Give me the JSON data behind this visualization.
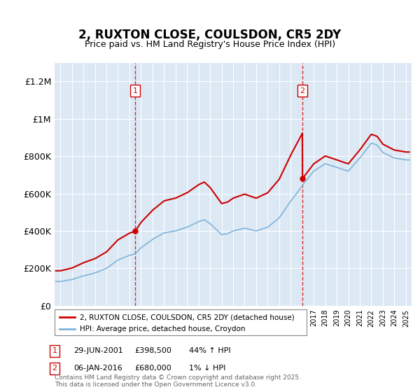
{
  "title": "2, RUXTON CLOSE, COULSDON, CR5 2DY",
  "subtitle": "Price paid vs. HM Land Registry's House Price Index (HPI)",
  "xlabel": "",
  "ylabel": "",
  "bg_color": "#dce9f5",
  "plot_bg_color": "#dce9f5",
  "red_line_color": "#cc0000",
  "blue_line_color": "#7fb3d9",
  "sale1_date": 2001.49,
  "sale1_price": 398500,
  "sale1_label": "1",
  "sale2_date": 2016.02,
  "sale2_price": 680000,
  "sale2_label": "2",
  "ylim_min": 0,
  "ylim_max": 1300000,
  "xlim_min": 1994.5,
  "xlim_max": 2025.5,
  "footer": "Contains HM Land Registry data © Crown copyright and database right 2025.\nThis data is licensed under the Open Government Licence v3.0.",
  "legend_line1": "2, RUXTON CLOSE, COULSDON, CR5 2DY (detached house)",
  "legend_line2": "HPI: Average price, detached house, Croydon",
  "table_row1": [
    "1",
    "29-JUN-2001",
    "£398,500",
    "44% ↑ HPI"
  ],
  "table_row2": [
    "2",
    "06-JAN-2016",
    "£680,000",
    "1% ↓ HPI"
  ]
}
